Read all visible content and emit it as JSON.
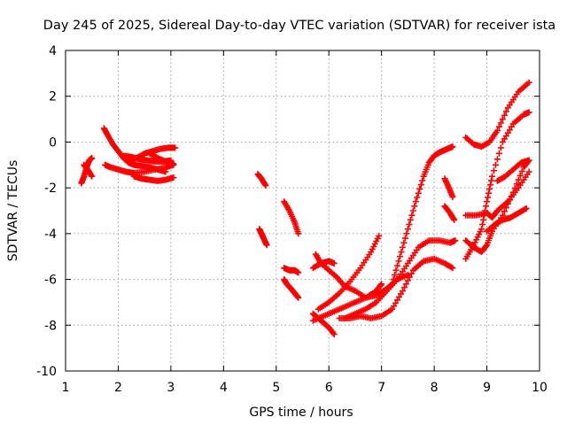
{
  "chart_data": {
    "type": "scatter",
    "title": "Day 245 of 2025, Sidereal Day-to-day VTEC variation (SDTVAR) for receiver ista",
    "xlabel": "GPS time / hours",
    "ylabel": "SDTVAR / TECUs",
    "xlim": [
      1,
      10
    ],
    "ylim": [
      -10,
      4
    ],
    "xticks": [
      1,
      2,
      3,
      4,
      5,
      6,
      7,
      8,
      9,
      10
    ],
    "yticks": [
      -10,
      -8,
      -6,
      -4,
      -2,
      0,
      2,
      4
    ],
    "grid": true,
    "marker": "plus",
    "color": "#ff0000",
    "series": [
      {
        "x": [
          1.3,
          1.35,
          1.4,
          1.45,
          1.5
        ],
        "y": [
          -1.8,
          -1.5,
          -1.1,
          -0.8,
          -0.7
        ]
      },
      {
        "x": [
          1.35,
          1.42,
          1.5
        ],
        "y": [
          -1.0,
          -1.2,
          -1.5
        ]
      },
      {
        "x": [
          1.73,
          1.8,
          1.9,
          2.0,
          2.1,
          2.2,
          2.3,
          2.45,
          2.6,
          2.75,
          2.9
        ],
        "y": [
          0.6,
          0.3,
          -0.1,
          -0.4,
          -0.7,
          -0.9,
          -1.0,
          -1.05,
          -1.1,
          -1.2,
          -1.3
        ]
      },
      {
        "x": [
          1.75,
          1.85,
          2.0,
          2.15,
          2.3,
          2.5,
          2.7,
          2.9,
          3.05
        ],
        "y": [
          -1.0,
          -1.1,
          -1.2,
          -1.3,
          -1.35,
          -1.3,
          -1.2,
          -1.1,
          -1.0
        ]
      },
      {
        "x": [
          2.2,
          2.35,
          2.5,
          2.65,
          2.8,
          2.95,
          3.08
        ],
        "y": [
          -0.9,
          -0.7,
          -0.5,
          -0.4,
          -0.3,
          -0.25,
          -0.25
        ]
      },
      {
        "x": [
          2.3,
          2.45,
          2.6,
          2.75,
          2.9,
          3.05
        ],
        "y": [
          -1.5,
          -1.6,
          -1.65,
          -1.7,
          -1.65,
          -1.55
        ]
      },
      {
        "x": [
          2.1,
          2.25,
          2.4,
          2.55,
          2.7,
          2.85,
          3.0
        ],
        "y": [
          -0.6,
          -0.65,
          -0.75,
          -0.8,
          -0.85,
          -0.85,
          -0.8
        ]
      },
      {
        "x": [
          2.6,
          2.75,
          2.9,
          3.05
        ],
        "y": [
          -0.5,
          -0.7,
          -0.85,
          -0.95
        ]
      },
      {
        "x": [
          4.65,
          4.72,
          4.8
        ],
        "y": [
          -1.4,
          -1.6,
          -1.9
        ]
      },
      {
        "x": [
          4.68,
          4.72,
          4.76,
          4.82
        ],
        "y": [
          -3.8,
          -4.0,
          -4.2,
          -4.5
        ]
      },
      {
        "x": [
          5.15,
          5.25,
          5.35,
          5.42
        ],
        "y": [
          -2.6,
          -3.0,
          -3.5,
          -4.0
        ]
      },
      {
        "x": [
          5.15,
          5.2,
          5.28,
          5.35,
          5.42
        ],
        "y": [
          -6.0,
          -6.2,
          -6.4,
          -6.6,
          -6.8
        ]
      },
      {
        "x": [
          5.15,
          5.25,
          5.35,
          5.42
        ],
        "y": [
          -5.5,
          -5.6,
          -5.6,
          -5.7
        ]
      },
      {
        "x": [
          5.7,
          5.8,
          5.9,
          6.0,
          6.1
        ],
        "y": [
          -7.5,
          -7.7,
          -7.9,
          -8.1,
          -8.4
        ]
      },
      {
        "x": [
          5.7,
          5.9,
          6.1,
          6.3,
          6.5,
          6.7,
          6.9,
          7.0
        ],
        "y": [
          -7.8,
          -7.6,
          -7.4,
          -7.2,
          -7.0,
          -6.8,
          -6.5,
          -6.2
        ]
      },
      {
        "x": [
          5.75,
          5.85,
          6.0,
          6.15,
          6.3,
          6.5,
          6.7,
          6.9,
          7.1,
          7.3,
          7.5
        ],
        "y": [
          -4.9,
          -5.3,
          -5.6,
          -5.9,
          -6.3,
          -6.5,
          -6.8,
          -6.7,
          -6.4,
          -6.0,
          -5.8
        ]
      },
      {
        "x": [
          5.8,
          6.0,
          6.2,
          6.4,
          6.6,
          6.8,
          6.95
        ],
        "y": [
          -7.3,
          -7.0,
          -6.6,
          -6.1,
          -5.5,
          -4.8,
          -4.1
        ]
      },
      {
        "x": [
          5.7,
          5.85,
          6.0,
          6.1
        ],
        "y": [
          -5.5,
          -5.3,
          -5.2,
          -5.3
        ]
      },
      {
        "x": [
          6.2,
          6.4,
          6.6,
          6.8,
          7.0,
          7.2,
          7.4,
          7.6,
          7.8,
          8.0,
          8.2,
          8.35
        ],
        "y": [
          -7.7,
          -7.7,
          -7.6,
          -7.7,
          -7.6,
          -7.3,
          -6.5,
          -5.6,
          -5.2,
          -5.1,
          -5.3,
          -5.5
        ]
      },
      {
        "x": [
          6.3,
          6.5,
          6.7,
          6.9,
          7.1,
          7.3,
          7.5,
          7.7,
          7.9,
          8.1,
          8.3,
          8.4
        ],
        "y": [
          -7.7,
          -7.5,
          -7.3,
          -7.0,
          -6.5,
          -6.0,
          -5.3,
          -4.6,
          -4.3,
          -4.3,
          -4.4,
          -4.3
        ]
      },
      {
        "x": [
          7.2,
          7.35,
          7.5,
          7.65,
          7.8,
          7.9,
          8.0,
          8.1,
          8.2,
          8.3,
          8.35
        ],
        "y": [
          -6.2,
          -5.0,
          -3.8,
          -2.6,
          -1.5,
          -0.9,
          -0.6,
          -0.45,
          -0.35,
          -0.25,
          -0.2
        ]
      },
      {
        "x": [
          8.2,
          8.28,
          8.35
        ],
        "y": [
          -1.6,
          -2.0,
          -2.4
        ]
      },
      {
        "x": [
          8.2,
          8.3,
          8.38
        ],
        "y": [
          -2.8,
          -3.1,
          -3.4
        ]
      },
      {
        "x": [
          8.6,
          8.75,
          8.9,
          9.05,
          9.2,
          9.4,
          9.6,
          9.8
        ],
        "y": [
          0.2,
          -0.1,
          -0.2,
          0.0,
          0.5,
          1.5,
          2.2,
          2.6
        ]
      },
      {
        "x": [
          8.6,
          8.75,
          8.9,
          9.0,
          9.1,
          9.3,
          9.5,
          9.7,
          9.8
        ],
        "y": [
          -4.3,
          -4.6,
          -4.8,
          -4.5,
          -3.9,
          -3.2,
          -2.2,
          -1.1,
          -0.8
        ]
      },
      {
        "x": [
          8.6,
          8.75,
          8.9,
          9.0,
          9.1,
          9.3,
          9.5,
          9.7,
          9.8
        ],
        "y": [
          -5.1,
          -4.5,
          -3.8,
          -2.6,
          -1.5,
          0.0,
          0.8,
          1.2,
          1.3
        ]
      },
      {
        "x": [
          8.6,
          8.8,
          9.0,
          9.1,
          9.2,
          9.4,
          9.6,
          9.8
        ],
        "y": [
          -3.2,
          -3.2,
          -3.1,
          -3.3,
          -3.0,
          -2.6,
          -2.0,
          -1.3
        ]
      },
      {
        "x": [
          9.0,
          9.15,
          9.3,
          9.45,
          9.6,
          9.75
        ],
        "y": [
          -3.9,
          -3.6,
          -3.4,
          -3.3,
          -3.1,
          -2.9
        ]
      },
      {
        "x": [
          9.2,
          9.35,
          9.5,
          9.65,
          9.8
        ],
        "y": [
          -1.7,
          -1.5,
          -1.2,
          -0.9,
          -0.8
        ]
      }
    ]
  }
}
